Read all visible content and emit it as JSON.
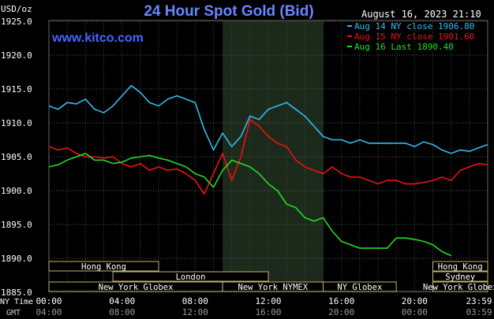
{
  "chart_data": {
    "type": "line",
    "title": "24 Hour Spot Gold (Bid)",
    "timestamp": "August 16, 2023 21:10",
    "website": "www.kitco.com",
    "ylabel": "USD/oz",
    "ylim": [
      1885.0,
      1925.0
    ],
    "yticks": [
      "1925.0",
      "1920.0",
      "1915.0",
      "1910.0",
      "1905.0",
      "1900.0",
      "1895.0",
      "1890.0",
      "1885.0"
    ],
    "yticks_values": [
      1925,
      1920,
      1915,
      1910,
      1905,
      1900,
      1895,
      1890,
      1885
    ],
    "xlim_hours": [
      0,
      24
    ],
    "x_axis_label_ny": "NY Time",
    "x_axis_label_gmt": "GMT",
    "xticks_ny": [
      "00:00",
      "04:00",
      "08:00",
      "12:00",
      "16:00",
      "20:00",
      "23:59"
    ],
    "xticks_gmt": [
      "04:00",
      "08:00",
      "12:00",
      "16:00",
      "20:00",
      "00:00",
      "03:59"
    ],
    "xticks_hours": [
      0,
      4,
      8,
      12,
      16,
      20,
      24
    ],
    "highlight_range_hours": [
      9.5,
      15.0
    ],
    "grid": true,
    "legend_position": "top-right",
    "sessions": [
      {
        "name": "Hong Kong",
        "row": 0,
        "start": 0.0,
        "end": 6.0
      },
      {
        "name": "London",
        "row": 1,
        "start": 3.5,
        "end": 12.0
      },
      {
        "name": "New York Globex",
        "row": 2,
        "start": 0.0,
        "end": 9.5
      },
      {
        "name": "New York NYMEX",
        "row": 2,
        "start": 9.5,
        "end": 15.0
      },
      {
        "name": "NY Globex",
        "row": 2,
        "start": 15.0,
        "end": 19.0
      },
      {
        "name": "Hong Kong",
        "row": 0,
        "start": 21.0,
        "end": 24.0
      },
      {
        "name": "Sydney",
        "row": 1,
        "start": 21.0,
        "end": 24.0
      },
      {
        "name": "New York Globex",
        "row": 2,
        "start": 21.0,
        "end": 24.0
      }
    ],
    "series": [
      {
        "name": "Aug 14 NY close 1906.80",
        "color": "#33bbee",
        "x": [
          0,
          0.5,
          1,
          1.5,
          2,
          2.5,
          3,
          3.5,
          4,
          4.5,
          5,
          5.5,
          6,
          6.5,
          7,
          7.5,
          8,
          8.5,
          9,
          9.5,
          10,
          10.5,
          11,
          11.5,
          12,
          12.5,
          13,
          13.5,
          14,
          14.5,
          15,
          15.5,
          16,
          16.5,
          17,
          17.5,
          18,
          18.5,
          19,
          19.5,
          20,
          20.5,
          21,
          21.5,
          22,
          22.5,
          23,
          23.5,
          24
        ],
        "values": [
          1912.5,
          1912.0,
          1913.0,
          1912.8,
          1913.5,
          1912.0,
          1911.5,
          1912.5,
          1914.0,
          1915.5,
          1914.5,
          1913.0,
          1912.5,
          1913.5,
          1914.0,
          1913.5,
          1913.0,
          1909.0,
          1906.0,
          1908.5,
          1906.5,
          1908.0,
          1911.0,
          1910.5,
          1912.0,
          1912.5,
          1913.0,
          1912.0,
          1911.0,
          1909.5,
          1908.0,
          1907.5,
          1907.5,
          1907.0,
          1907.5,
          1907.0,
          1907.0,
          1907.0,
          1907.0,
          1907.0,
          1906.5,
          1907.2,
          1906.8,
          1906.0,
          1905.5,
          1906.0,
          1905.8,
          1906.3,
          1906.8
        ]
      },
      {
        "name": "Aug 15 NY close 1901.60",
        "color": "#ee1111",
        "x": [
          0,
          0.5,
          1,
          1.5,
          2,
          2.5,
          3,
          3.5,
          4,
          4.5,
          5,
          5.5,
          6,
          6.5,
          7,
          7.5,
          8,
          8.5,
          9,
          9.5,
          10,
          10.5,
          11,
          11.5,
          12,
          12.5,
          13,
          13.5,
          14,
          14.5,
          15,
          15.5,
          16,
          16.5,
          17,
          17.5,
          18,
          18.5,
          19,
          19.5,
          20,
          20.5,
          21,
          21.5,
          22,
          22.5,
          23,
          23.5,
          24
        ],
        "values": [
          1906.5,
          1906.0,
          1906.3,
          1905.5,
          1905.0,
          1905.0,
          1904.8,
          1905.0,
          1904.0,
          1903.5,
          1904.0,
          1903.0,
          1903.5,
          1903.0,
          1903.2,
          1902.5,
          1901.5,
          1899.5,
          1902.5,
          1905.5,
          1901.5,
          1905.0,
          1910.5,
          1909.5,
          1908.0,
          1907.0,
          1906.5,
          1904.5,
          1903.5,
          1903.0,
          1902.5,
          1903.5,
          1902.5,
          1902.0,
          1902.0,
          1901.5,
          1901.0,
          1901.5,
          1901.5,
          1901.0,
          1901.0,
          1901.2,
          1901.5,
          1902.0,
          1901.5,
          1903.0,
          1903.5,
          1904.0,
          1903.8
        ]
      },
      {
        "name": "Aug 16 Last 1890.40",
        "color": "#22dd22",
        "x": [
          0,
          0.5,
          1,
          1.5,
          2,
          2.5,
          3,
          3.5,
          4,
          4.5,
          5,
          5.5,
          6,
          6.5,
          7,
          7.5,
          8,
          8.5,
          9,
          9.5,
          10,
          10.5,
          11,
          11.5,
          12,
          12.5,
          13,
          13.5,
          14,
          14.5,
          15,
          15.5,
          16,
          16.5,
          17,
          17.5,
          18,
          18.5,
          19,
          19.5,
          20,
          20.5,
          21,
          21.5,
          22
        ],
        "values": [
          1903.5,
          1903.8,
          1904.5,
          1905.0,
          1905.5,
          1904.5,
          1904.5,
          1904.0,
          1904.2,
          1904.8,
          1905.0,
          1905.2,
          1904.8,
          1904.5,
          1904.0,
          1903.5,
          1902.5,
          1902.0,
          1900.5,
          1903.0,
          1904.5,
          1904.0,
          1903.5,
          1902.5,
          1901.0,
          1900.0,
          1898.0,
          1897.5,
          1896.0,
          1895.5,
          1896.0,
          1894.0,
          1892.5,
          1892.0,
          1891.5,
          1891.5,
          1891.5,
          1891.5,
          1893.0,
          1893.0,
          1892.8,
          1892.5,
          1892.0,
          1891.0,
          1890.4
        ]
      }
    ]
  }
}
